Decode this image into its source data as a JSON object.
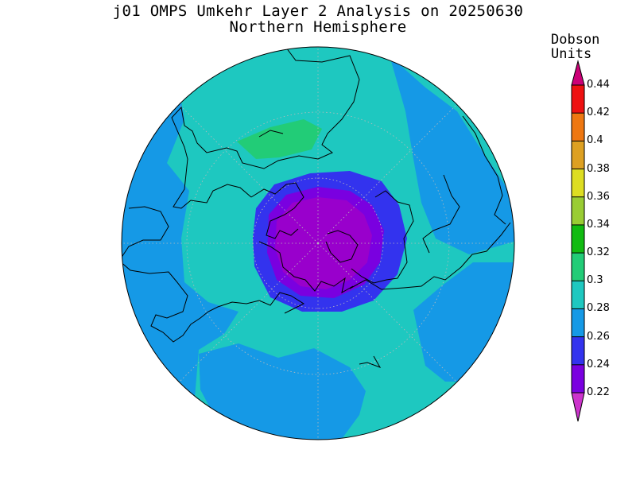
{
  "title": "j01 OMPS Umkehr Layer 2 Analysis on 20250630",
  "subtitle": "Northern Hemisphere",
  "colorbar": {
    "units_line1": "Dobson",
    "units_line2": "Units",
    "ticks": [
      "0.22",
      "0.24",
      "0.26",
      "0.28",
      "0.3",
      "0.32",
      "0.34",
      "0.36",
      "0.38",
      "0.4",
      "0.42",
      "0.44"
    ],
    "low_extend_color": "#cc33cc",
    "high_extend_color": "#cc0077",
    "bins": [
      {
        "from": 0.2,
        "to": 0.22,
        "color": "#9900cc"
      },
      {
        "from": 0.22,
        "to": 0.24,
        "color": "#7a00e0"
      },
      {
        "from": 0.24,
        "to": 0.26,
        "color": "#3333ee"
      },
      {
        "from": 0.26,
        "to": 0.28,
        "color": "#1599e6"
      },
      {
        "from": 0.28,
        "to": 0.3,
        "color": "#1ec8c0"
      },
      {
        "from": 0.3,
        "to": 0.32,
        "color": "#22cc77"
      },
      {
        "from": 0.32,
        "to": 0.34,
        "color": "#11bb11"
      },
      {
        "from": 0.34,
        "to": 0.36,
        "color": "#99cc33"
      },
      {
        "from": 0.36,
        "to": 0.38,
        "color": "#dddd22"
      },
      {
        "from": 0.38,
        "to": 0.4,
        "color": "#dda022"
      },
      {
        "from": 0.4,
        "to": 0.42,
        "color": "#ee7711"
      },
      {
        "from": 0.42,
        "to": 0.44,
        "color": "#ee1111"
      }
    ]
  },
  "map": {
    "projection": "polar stereographic",
    "hemisphere": "north",
    "grid": "dotted",
    "coastlines": true,
    "background_color": "#1ec8c0",
    "low_region_color": "#9900cc"
  }
}
